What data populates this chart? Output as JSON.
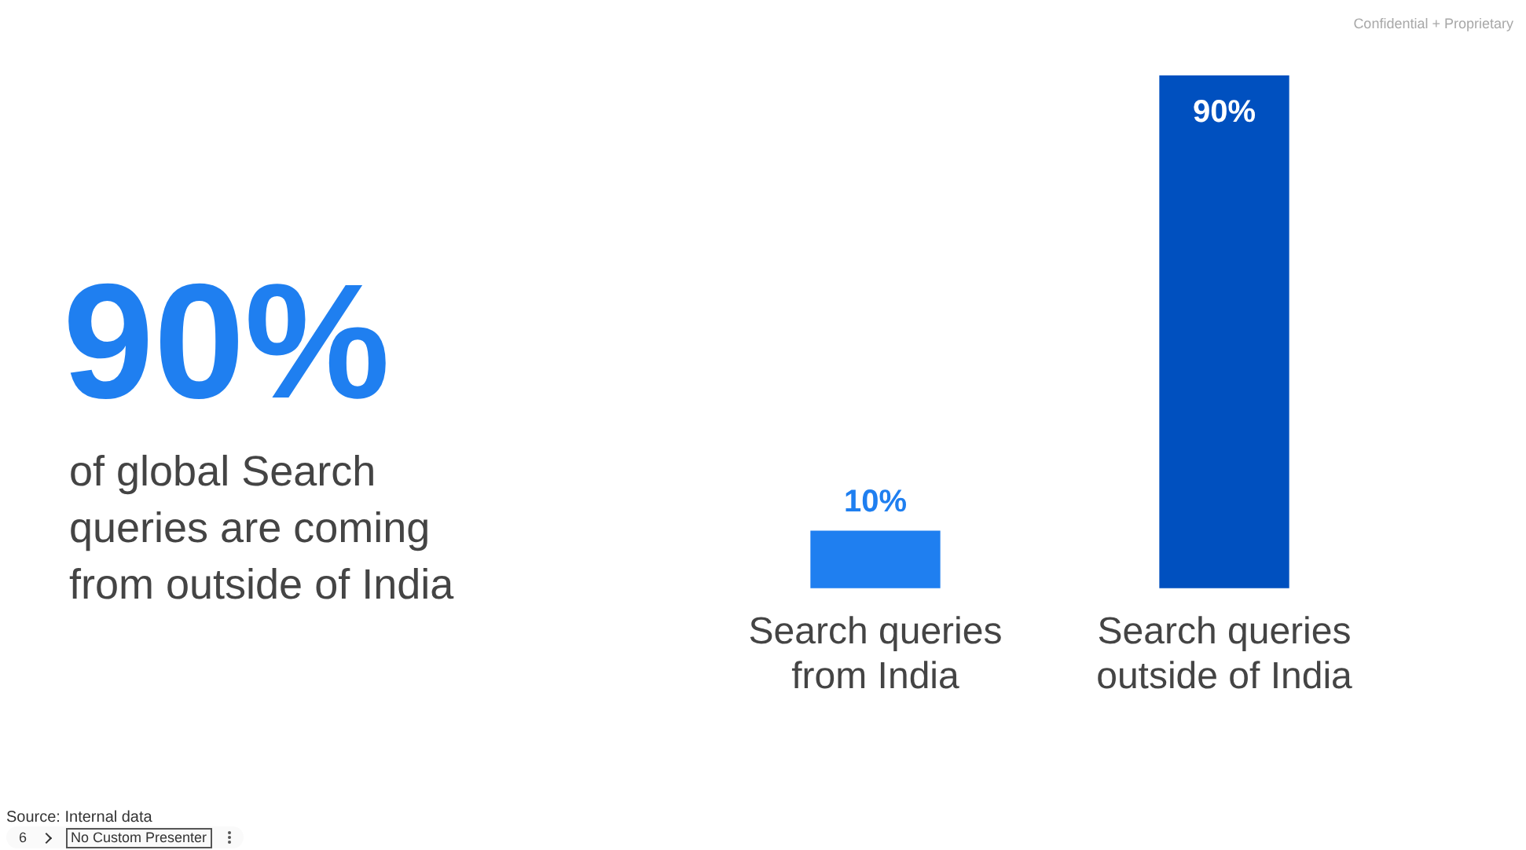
{
  "chart_data": {
    "type": "bar",
    "title": "90%",
    "subtitle": "of global Search queries are coming from outside of India",
    "categories": [
      "Search queries from India",
      "Search queries outside of India"
    ],
    "values": [
      10,
      90
    ],
    "colors": [
      "#1f7ff0",
      "#0050bf"
    ],
    "value_labels": [
      "10%",
      "90%"
    ],
    "grid": false,
    "legend": false,
    "annotations": [
      "Confidential + Proprietary",
      "Source: Internal data",
      "6",
      "No Custom Presenter"
    ]
  }
}
